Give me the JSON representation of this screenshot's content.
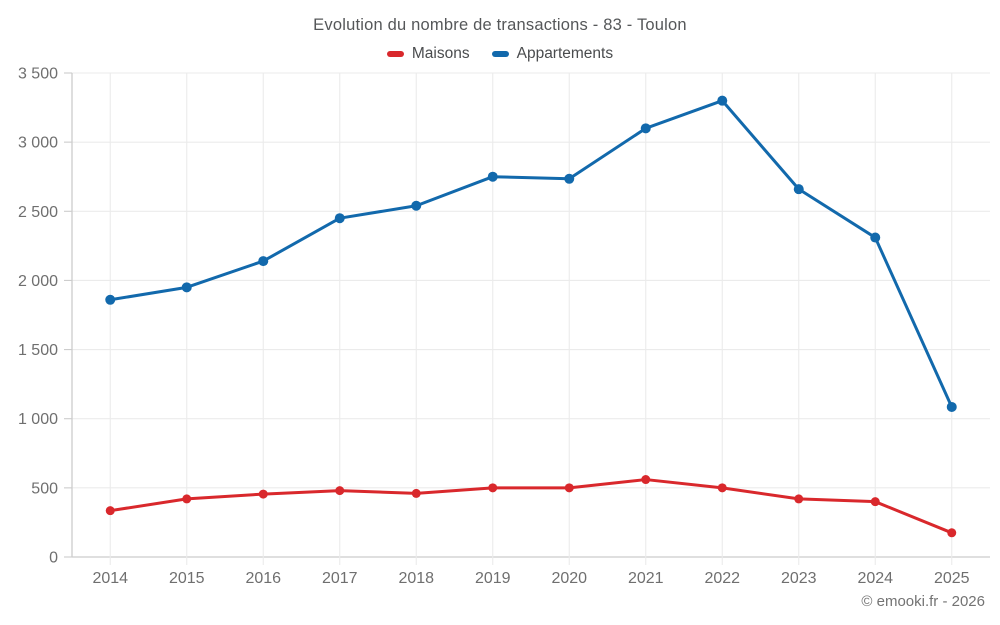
{
  "chart": {
    "title": "Evolution du nombre de transactions - 83 - Toulon",
    "footer": "© emooki.fr - 2026"
  },
  "chart_data": {
    "type": "line",
    "title": "Evolution du nombre de transactions - 83 - Toulon",
    "categories": [
      "2014",
      "2015",
      "2016",
      "2017",
      "2018",
      "2019",
      "2020",
      "2021",
      "2022",
      "2023",
      "2024",
      "2025"
    ],
    "series": [
      {
        "name": "Maisons",
        "color": "#d9282c",
        "marker_radius": 4.5,
        "values": [
          335,
          420,
          455,
          480,
          460,
          500,
          500,
          560,
          500,
          420,
          400,
          175
        ]
      },
      {
        "name": "Appartements",
        "color": "#1269ac",
        "marker_radius": 5,
        "values": [
          1860,
          1950,
          2140,
          2450,
          2540,
          2750,
          2735,
          3100,
          3300,
          2660,
          2310,
          1085
        ]
      }
    ],
    "xlabel": "",
    "ylabel": "",
    "ylim": [
      0,
      3500
    ],
    "yticks": [
      0,
      500,
      1000,
      1500,
      2000,
      2500,
      3000,
      3500
    ],
    "ytick_labels": [
      "0",
      "500",
      "1 000",
      "1 500",
      "2 000",
      "2 500",
      "3 000",
      "3 500"
    ],
    "grid": true,
    "legend_position": "top",
    "colors": {
      "gridline": "#ebebeb",
      "axis_line": "#cccccc",
      "tick_label": "#6f6f6f"
    }
  }
}
